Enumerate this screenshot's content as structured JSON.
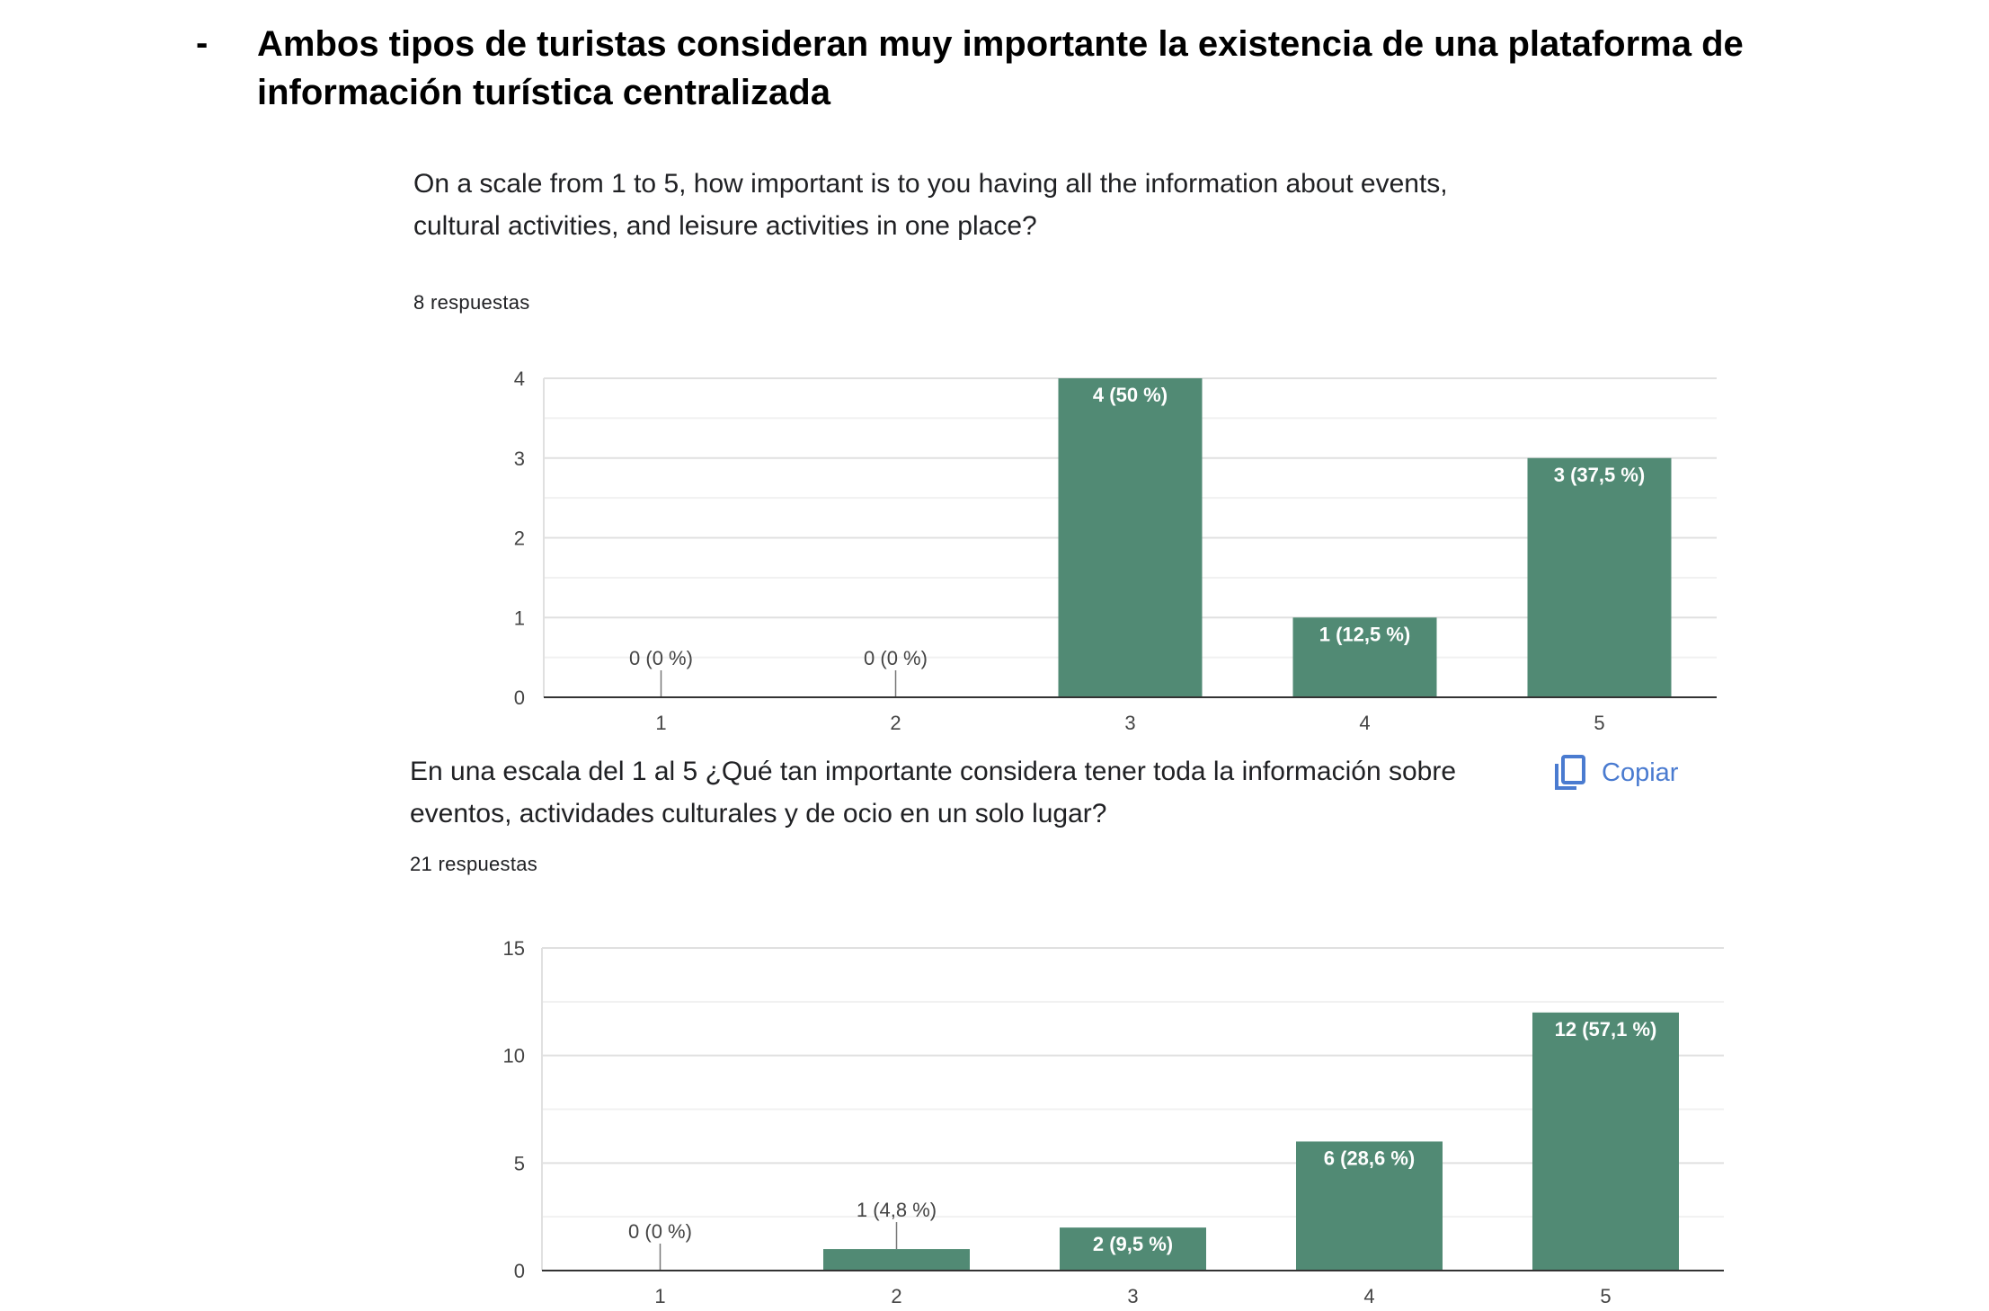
{
  "heading": {
    "bullet": "-",
    "text": "Ambos tipos de turistas consideran muy importante la existencia de una plataforma de información turística centralizada"
  },
  "accent_color": "#518a74",
  "copy_button": {
    "label": "Copiar",
    "icon": "copy-icon",
    "color": "#4a7bd0"
  },
  "chart_data": [
    {
      "type": "bar",
      "question": "On a scale from 1 to 5, how important is to you having all the information about events, cultural activities, and leisure activities in one place?",
      "responses": "8 respuestas",
      "categories": [
        "1",
        "2",
        "3",
        "4",
        "5"
      ],
      "values": [
        0,
        0,
        4,
        1,
        3
      ],
      "data_labels": [
        "0 (0 %)",
        "0 (0 %)",
        "4 (50 %)",
        "1 (12,5 %)",
        "3 (37,5 %)"
      ],
      "yticks": [
        0,
        1,
        2,
        3,
        4
      ],
      "ylim": [
        0,
        4
      ],
      "grid": true,
      "bar_color": "#518a74"
    },
    {
      "type": "bar",
      "question": "En una escala del 1 al 5 ¿Qué tan importante considera tener toda la información sobre eventos, actividades culturales y de ocio en un solo lugar?",
      "responses": "21 respuestas",
      "categories": [
        "1",
        "2",
        "3",
        "4",
        "5"
      ],
      "values": [
        0,
        1,
        2,
        6,
        12
      ],
      "data_labels": [
        "0 (0 %)",
        "1 (4,8 %)",
        "2 (9,5 %)",
        "6 (28,6 %)",
        "12 (57,1 %)"
      ],
      "yticks": [
        0,
        5,
        10,
        15
      ],
      "ylim": [
        0,
        15
      ],
      "grid": true,
      "bar_color": "#518a74"
    }
  ]
}
